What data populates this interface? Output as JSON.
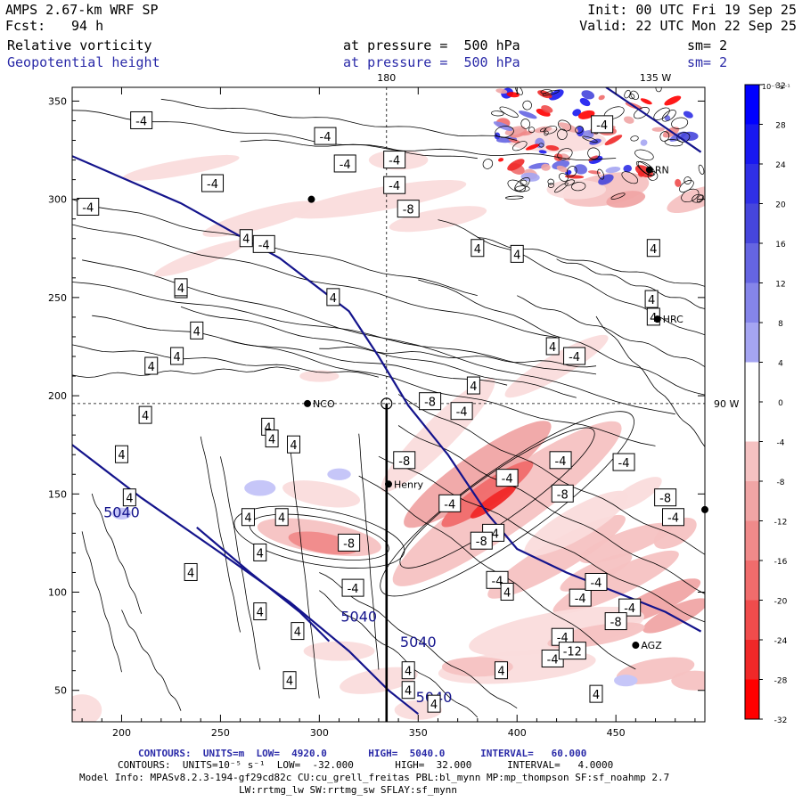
{
  "header": {
    "title": "AMPS 2.67-km WRF SP",
    "fcst_label": "Fcst:",
    "fcst_value": "94 h",
    "init": "Init: 00 UTC Fri 19 Sep 25",
    "valid": "Valid: 22 UTC Mon 22 Sep 25",
    "field1": "Relative vorticity",
    "field2": "Geopotential height",
    "pressure1": "at pressure =  500 hPa",
    "pressure2": "at pressure =  500 hPa",
    "sm1": "sm= 2",
    "sm2": "sm= 2"
  },
  "footer": {
    "contours1": "CONTOURS:  UNITS=m  LOW=  4920.0       HIGH=  5040.0      INTERVAL=   60.000",
    "contours2": "CONTOURS:  UNITS=10⁻⁵ s⁻¹  LOW=  -32.000       HIGH=  32.000      INTERVAL=   4.0000",
    "model1": "Model Info: MPASv8.2.3-194-gf29cd82c CU:cu_grell_freitas PBL:bl_mynn MP:mp_thompson SF:sf_noahmp 2.7",
    "model2": "LW:rrtmg_lw SW:rrtmg_sw SFLAY:sf_mynn"
  },
  "colors": {
    "blue_line": "#14148c",
    "text_blue": "#2a2aa8"
  },
  "chart_data": {
    "type": "heatmap",
    "title": "Relative vorticity / Geopotential height at 500 hPa",
    "x_ticks": [
      200,
      250,
      300,
      350,
      400,
      450
    ],
    "y_ticks": [
      50,
      100,
      150,
      200,
      250,
      300,
      350
    ],
    "xlim": [
      175,
      495
    ],
    "ylim": [
      34,
      357
    ],
    "longitude_labels": {
      "top_180": "180",
      "top_135": "135 W",
      "right_90": "90 W"
    },
    "colorbar": {
      "units": "10⁻⁵ s⁻¹",
      "ticks": [
        32,
        28,
        24,
        20,
        16,
        12,
        8,
        4,
        0,
        -4,
        -8,
        -12,
        -16,
        -20,
        -24,
        -28,
        -32
      ],
      "positive_colors": [
        "#0000ff",
        "#1818f0",
        "#2f2fe6",
        "#4646dc",
        "#6565e2",
        "#8585ea",
        "#a5a5f2",
        "#c6c6f8"
      ],
      "negative_colors": [
        "#fff0f0",
        "#fadcdc",
        "#f5c2c2",
        "#f0a5a5",
        "#f08a8a",
        "#f06c6c",
        "#f04c4c",
        "#f02828",
        "#ff0000"
      ]
    },
    "height_contours": [
      {
        "label": "5040",
        "points": [
          [
            175,
            322
          ],
          [
            230,
            298
          ],
          [
            280,
            270
          ],
          [
            315,
            243
          ],
          [
            330,
            220
          ],
          [
            345,
            195
          ],
          [
            365,
            170
          ],
          [
            385,
            140
          ],
          [
            400,
            122
          ],
          [
            425,
            110
          ],
          [
            450,
            100
          ],
          [
            475,
            90
          ],
          [
            493,
            80
          ]
        ]
      },
      {
        "label": "5040",
        "points": [
          [
            175,
            175
          ],
          [
            210,
            148
          ],
          [
            250,
            120
          ],
          [
            285,
            95
          ],
          [
            315,
            70
          ],
          [
            335,
            50
          ],
          [
            350,
            38
          ]
        ]
      },
      {
        "label": "5040",
        "points": [
          [
            238,
            133
          ],
          [
            265,
            110
          ],
          [
            290,
            90
          ],
          [
            305,
            75
          ]
        ]
      },
      {
        "label": "",
        "points": [
          [
            445,
            357
          ],
          [
            470,
            340
          ],
          [
            493,
            324
          ]
        ]
      }
    ],
    "contour_labels": [
      "5040",
      "5040",
      "5040",
      "5040"
    ],
    "vorticity_labels": [
      "-4",
      "-4",
      "-4",
      "-4",
      "-4",
      "-4",
      "-4",
      "-4",
      "-4",
      "-4",
      "-4",
      "-4",
      "-4",
      "-4",
      "-4",
      "-4",
      "-4",
      "-4",
      "-4",
      "-4",
      "-4",
      "-4",
      "-4",
      "-4",
      "-8",
      "-8",
      "-8",
      "-8",
      "-8",
      "-8",
      "-8",
      "-8",
      "-12",
      "4",
      "4",
      "4",
      "4",
      "4",
      "4",
      "4",
      "4",
      "4",
      "4",
      "4",
      "4",
      "4",
      "4",
      "4",
      "4",
      "4",
      "4",
      "4",
      "4",
      "4",
      "4",
      "4",
      "4",
      "4",
      "4",
      "4",
      "4",
      "4",
      "4",
      "4",
      "4",
      "4"
    ],
    "stations": [
      "NCO",
      "Henry",
      "HRC",
      "AGZ",
      "RN"
    ],
    "station_points": [
      [
        294,
        196
      ],
      [
        335,
        155
      ],
      [
        471,
        239
      ],
      [
        460,
        73
      ],
      [
        467,
        315
      ],
      [
        495,
        142
      ],
      [
        296,
        300
      ]
    ],
    "transect": {
      "x": 334,
      "from_y": 196,
      "to_y": 34
    }
  }
}
